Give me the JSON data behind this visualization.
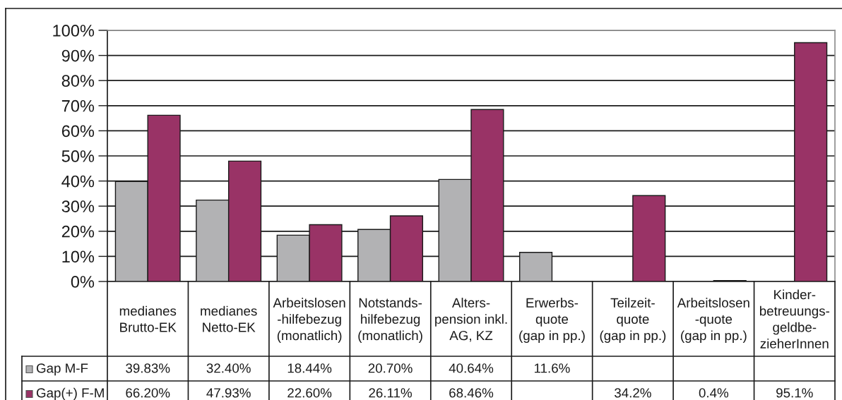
{
  "chart_data": {
    "type": "bar",
    "categories": [
      "medianes\nBrutto-EK",
      "medianes\nNetto-EK",
      "Arbeitslosen\n-hilfebezug\n(monatlich)",
      "Notstands-\nhilfebezug\n(monatlich)",
      "Alters-\npension inkl.\nAG, KZ",
      "Erwerbs-\nquote\n(gap in pp.)",
      "Teilzeit-\nquote\n(gap in pp.)",
      "Arbeitslosen\n-quote\n(gap in pp.)",
      "Kinder-\nbetreuungs-\ngeldbe-\nzieherInnen"
    ],
    "series": [
      {
        "name": "Gap M-F",
        "color": "#b2b2b4",
        "values": [
          39.83,
          32.4,
          18.44,
          20.7,
          40.64,
          11.6,
          null,
          null,
          null
        ],
        "value_labels": [
          "39.83%",
          "32.40%",
          "18.44%",
          "20.70%",
          "40.64%",
          "11.6%",
          null,
          null,
          null
        ]
      },
      {
        "name": "Gap(+) F-M",
        "color": "#993366",
        "values": [
          66.2,
          47.93,
          22.6,
          26.11,
          68.46,
          null,
          34.2,
          0.4,
          95.1
        ],
        "value_labels": [
          "66.20%",
          "47.93%",
          "22.60%",
          "26.11%",
          "68.46%",
          null,
          "34.2%",
          "0.4%",
          "95.1%"
        ]
      }
    ],
    "ylim": [
      0,
      100
    ],
    "yticks": [
      {
        "value": 0,
        "label": "0%"
      },
      {
        "value": 10,
        "label": "10%"
      },
      {
        "value": 20,
        "label": "20%"
      },
      {
        "value": 30,
        "label": "30%"
      },
      {
        "value": 40,
        "label": "40%"
      },
      {
        "value": 50,
        "label": "50%"
      },
      {
        "value": 60,
        "label": "60%"
      },
      {
        "value": 70,
        "label": "70%"
      },
      {
        "value": 80,
        "label": "80%"
      },
      {
        "value": 90,
        "label": "90%"
      },
      {
        "value": 100,
        "label": "100%"
      }
    ],
    "grid": "y",
    "legend": "bottom"
  }
}
